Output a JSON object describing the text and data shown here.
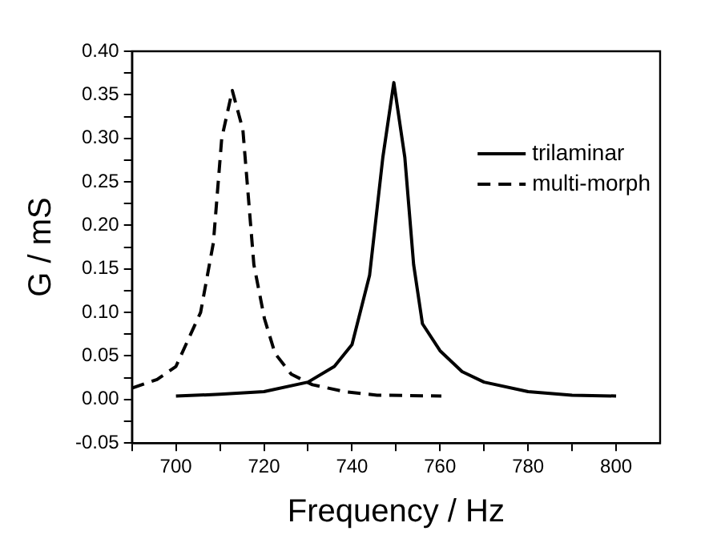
{
  "chart_data": {
    "type": "line",
    "xlabel": "Frequency / Hz",
    "ylabel": "G / mS",
    "xlim": [
      690,
      810
    ],
    "xticks": [
      {
        "value": 690,
        "label": null
      },
      700,
      {
        "value": 710,
        "label": null
      },
      720,
      {
        "value": 730,
        "label": null
      },
      740,
      {
        "value": 750,
        "label": null
      },
      760,
      {
        "value": 770,
        "label": null
      },
      780,
      {
        "value": 790,
        "label": null
      },
      800
    ],
    "ylim": [
      -0.05,
      0.4
    ],
    "yticks": [
      {
        "value": -0.05,
        "label": "-0.05"
      },
      {
        "value": -0.025,
        "label": null
      },
      {
        "value": 0,
        "label": "0.00"
      },
      {
        "value": 0.025,
        "label": null
      },
      {
        "value": 0.05,
        "label": "0.05"
      },
      {
        "value": 0.075,
        "label": null
      },
      {
        "value": 0.1,
        "label": "0.10"
      },
      {
        "value": 0.125,
        "label": null
      },
      {
        "value": 0.15,
        "label": "0.15"
      },
      {
        "value": 0.175,
        "label": null
      },
      {
        "value": 0.2,
        "label": "0.20"
      },
      {
        "value": 0.225,
        "label": null
      },
      {
        "value": 0.25,
        "label": "0.25"
      },
      {
        "value": 0.275,
        "label": null
      },
      {
        "value": 0.3,
        "label": "0.30"
      },
      {
        "value": 0.325,
        "label": null
      },
      {
        "value": 0.35,
        "label": "0.35"
      },
      {
        "value": 0.375,
        "label": null
      },
      {
        "value": 0.4,
        "label": "0.40"
      }
    ],
    "grid": false,
    "legend": "top right",
    "marker": "none",
    "series": [
      {
        "name": "trilaminar",
        "color": "#000000",
        "line_style": "solid",
        "x": [
          700,
          710,
          720,
          730,
          736,
          740,
          744,
          747,
          749.5,
          752,
          754,
          756,
          760,
          765,
          770,
          780,
          790,
          800
        ],
        "values": [
          0.004,
          0.006,
          0.009,
          0.02,
          0.038,
          0.063,
          0.143,
          0.278,
          0.364,
          0.278,
          0.155,
          0.087,
          0.056,
          0.032,
          0.02,
          0.009,
          0.005,
          0.004
        ]
      },
      {
        "name": "multi-morph",
        "color": "#000000",
        "line_style": "dashed",
        "x": [
          690,
          695.7,
          700,
          705.6,
          708.5,
          710.4,
          712.8,
          715.2,
          717.7,
          720.1,
          722.5,
          726.2,
          731,
          738.4,
          745.7,
          760.3
        ],
        "values": [
          0.013,
          0.023,
          0.038,
          0.1,
          0.18,
          0.3,
          0.355,
          0.31,
          0.155,
          0.093,
          0.053,
          0.029,
          0.017,
          0.009,
          0.005,
          0.004
        ]
      }
    ]
  }
}
